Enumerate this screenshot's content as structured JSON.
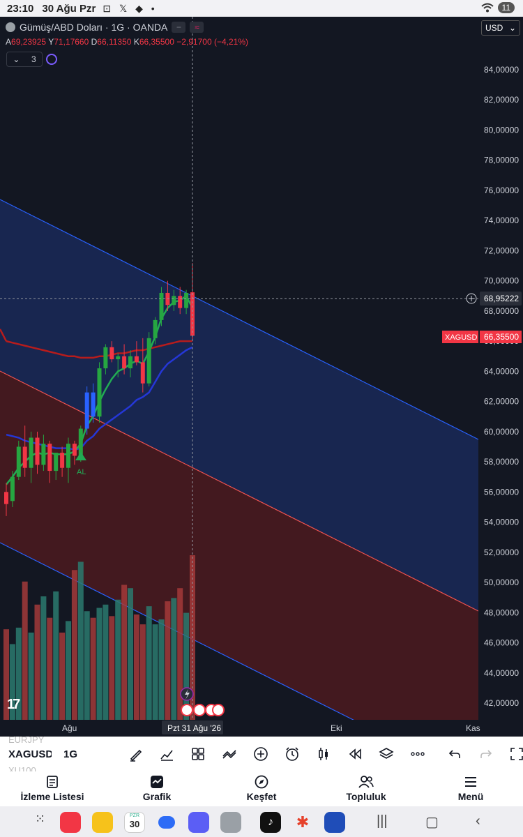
{
  "status": {
    "time": "23:10",
    "date": "30 Ağu Pzr",
    "icons": "⊡ 𝕏 ◆ •",
    "battery": "11"
  },
  "chart_header": {
    "title": "Gümüş/ABD Doları · 1G · OANDA",
    "ohlc": {
      "o_label": "A",
      "o": "69,23925",
      "h_label": "Y",
      "h": "71,17660",
      "l_label": "D",
      "l": "66,11350",
      "c_label": "K",
      "c": "66,35500",
      "change": "−2,91700 (−4,21%)"
    },
    "indicator_count": "3",
    "currency": "USD"
  },
  "chart_data": {
    "type": "candlestick",
    "symbol": "XAGUSD",
    "interval": "1G",
    "y_axis_ticks": [
      "84,00000",
      "82,00000",
      "80,00000",
      "78,00000",
      "76,00000",
      "74,00000",
      "72,00000",
      "70,00000",
      "68,00000",
      "66,00000",
      "64,00000",
      "62,00000",
      "60,00000",
      "58,00000",
      "56,00000",
      "54,00000",
      "52,00000",
      "50,00000",
      "48,00000",
      "46,00000",
      "44,00000",
      "42,00000"
    ],
    "ylim": [
      41,
      85
    ],
    "x_axis_labels": [
      "Ağu",
      "Eki",
      "Kas"
    ],
    "crosshair_date": "Pzt 31 Ağu '26",
    "crosshair_price": "68,95222",
    "last_price_label": "XAGUSD",
    "last_price": "66,35500",
    "signal_label": "AL",
    "candles": [
      {
        "o": 56.0,
        "h": 56.6,
        "l": 54.4,
        "c": 55.2
      },
      {
        "o": 55.4,
        "h": 57.4,
        "l": 55.0,
        "c": 57.0
      },
      {
        "o": 57.0,
        "h": 59.4,
        "l": 56.8,
        "c": 59.0
      },
      {
        "o": 59.0,
        "h": 60.4,
        "l": 57.0,
        "c": 57.6
      },
      {
        "o": 57.6,
        "h": 60.0,
        "l": 56.6,
        "c": 59.6
      },
      {
        "o": 59.6,
        "h": 60.0,
        "l": 57.2,
        "c": 57.8
      },
      {
        "o": 57.8,
        "h": 59.8,
        "l": 57.4,
        "c": 59.2
      },
      {
        "o": 59.2,
        "h": 59.4,
        "l": 56.6,
        "c": 57.4
      },
      {
        "o": 57.4,
        "h": 58.6,
        "l": 56.8,
        "c": 58.6
      },
      {
        "o": 58.6,
        "h": 59.0,
        "l": 57.0,
        "c": 57.6
      },
      {
        "o": 57.6,
        "h": 59.6,
        "l": 56.6,
        "c": 59.2
      },
      {
        "o": 59.2,
        "h": 59.4,
        "l": 57.8,
        "c": 58.4
      },
      {
        "o": 58.4,
        "h": 60.4,
        "l": 58.0,
        "c": 60.2
      },
      {
        "o": 60.2,
        "h": 63.0,
        "l": 59.8,
        "c": 62.6
      },
      {
        "o": 62.6,
        "h": 63.2,
        "l": 60.6,
        "c": 61.0
      },
      {
        "o": 61.0,
        "h": 64.6,
        "l": 60.6,
        "c": 64.2
      },
      {
        "o": 64.2,
        "h": 65.8,
        "l": 63.8,
        "c": 65.6
      },
      {
        "o": 65.6,
        "h": 66.0,
        "l": 64.6,
        "c": 64.8
      },
      {
        "o": 64.8,
        "h": 65.2,
        "l": 63.6,
        "c": 65.0
      },
      {
        "o": 65.0,
        "h": 65.8,
        "l": 63.8,
        "c": 64.2
      },
      {
        "o": 64.2,
        "h": 65.4,
        "l": 63.6,
        "c": 65.0
      },
      {
        "o": 65.0,
        "h": 66.0,
        "l": 64.4,
        "c": 64.6
      },
      {
        "o": 64.6,
        "h": 66.2,
        "l": 62.6,
        "c": 63.2
      },
      {
        "o": 63.2,
        "h": 66.6,
        "l": 63.0,
        "c": 66.2
      },
      {
        "o": 66.2,
        "h": 67.6,
        "l": 65.8,
        "c": 67.4
      },
      {
        "o": 67.4,
        "h": 69.6,
        "l": 67.0,
        "c": 69.2
      },
      {
        "o": 69.2,
        "h": 70.0,
        "l": 68.0,
        "c": 68.4
      },
      {
        "o": 68.4,
        "h": 69.4,
        "l": 68.0,
        "c": 69.0
      },
      {
        "o": 69.0,
        "h": 69.6,
        "l": 67.8,
        "c": 68.2
      },
      {
        "o": 68.2,
        "h": 69.4,
        "l": 67.8,
        "c": 69.2
      },
      {
        "o": 69.24,
        "h": 71.18,
        "l": 66.11,
        "c": 66.36
      }
    ],
    "volume_rel": [
      0.55,
      0.46,
      0.56,
      0.84,
      0.53,
      0.7,
      0.75,
      0.62,
      0.78,
      0.53,
      0.6,
      0.91,
      0.96,
      0.66,
      0.62,
      0.68,
      0.7,
      0.63,
      0.73,
      0.82,
      0.8,
      0.64,
      0.58,
      0.69,
      0.58,
      0.61,
      0.72,
      0.74,
      0.8,
      0.65,
      1.0
    ],
    "indicators": {
      "ma_green": [
        56.5,
        57.0,
        57.6,
        58.0,
        58.4,
        58.6,
        58.5,
        58.6,
        58.5,
        58.5,
        58.5,
        58.7,
        59.2,
        60.4,
        61.0,
        62.0,
        62.8,
        63.5,
        64.0,
        64.2,
        64.5,
        64.7,
        64.5,
        65.3,
        66.3,
        67.5,
        68.2,
        68.6,
        68.7,
        69.0,
        68.2
      ],
      "ma_blue": [
        59.8,
        59.7,
        59.6,
        59.4,
        59.3,
        59.2,
        59.1,
        59.0,
        58.9,
        58.9,
        58.9,
        58.8,
        58.9,
        59.4,
        59.7,
        60.2,
        60.5,
        60.8,
        61.1,
        61.4,
        61.7,
        62.1,
        62.3,
        62.6,
        63.3,
        64.0,
        64.5,
        64.8,
        65.1,
        65.4,
        65.6
      ],
      "ma_red": [
        66.0,
        65.9,
        65.8,
        65.7,
        65.6,
        65.5,
        65.4,
        65.3,
        65.2,
        65.1,
        65.0,
        65.0,
        64.9,
        64.9,
        64.9,
        65.0,
        65.0,
        65.1,
        65.2,
        65.2,
        65.3,
        65.4,
        65.4,
        65.5,
        65.6,
        65.7,
        65.8,
        65.9,
        66.0,
        66.0,
        66.0
      ]
    }
  },
  "symbol_bar": {
    "ghost_above": "EURJPY",
    "symbol": "XAGUSD",
    "interval": "1G",
    "ghost_below": "XU100"
  },
  "bottom_nav": [
    {
      "label": "İzleme Listesi",
      "icon": "list-icon"
    },
    {
      "label": "Grafik",
      "icon": "chart-icon"
    },
    {
      "label": "Keşfet",
      "icon": "compass-icon"
    },
    {
      "label": "Topluluk",
      "icon": "people-icon"
    },
    {
      "label": "Menü",
      "icon": "menu-icon"
    }
  ],
  "dock": {
    "calendar_day": "30",
    "calendar_label": "PZR"
  },
  "colors": {
    "bg": "#131722",
    "up": "#089981",
    "down": "#f23645",
    "channel_blue": "#1e3a8a",
    "channel_red": "#7f1d1d"
  }
}
